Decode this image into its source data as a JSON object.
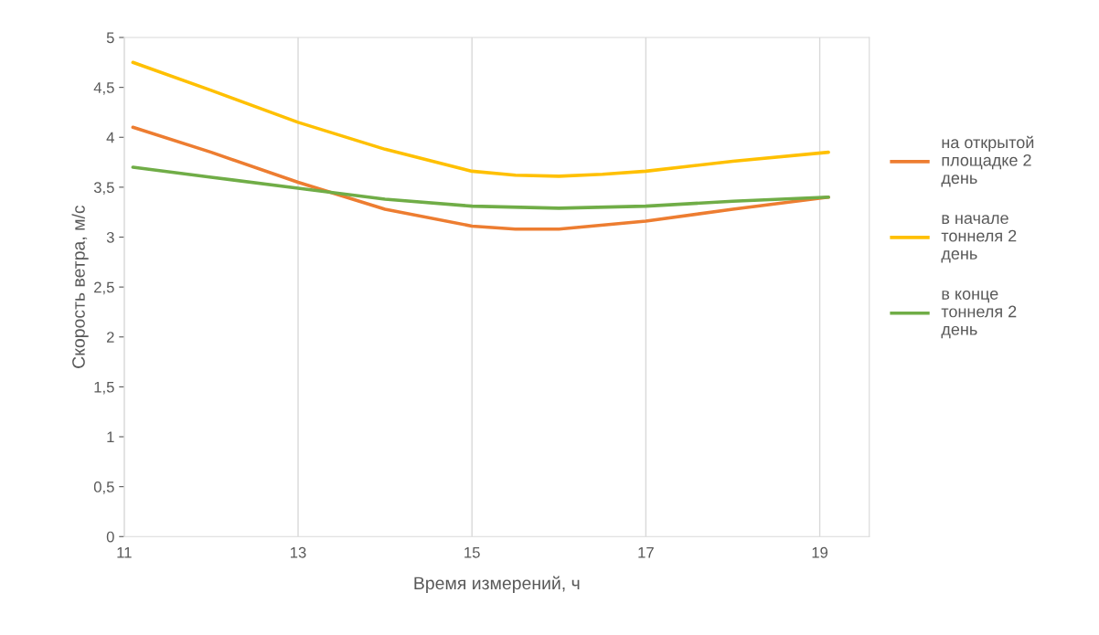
{
  "chart_data": {
    "type": "line",
    "xlabel": "Время измерений, ч",
    "ylabel": "Скорость ветра, м/с",
    "xlim": [
      11,
      19.57
    ],
    "xticks": [
      11,
      13,
      15,
      17,
      19
    ],
    "ylim": [
      0,
      5
    ],
    "yticks": [
      0,
      {
        "value": 0.5,
        "label": "0,5"
      },
      1,
      {
        "value": 1.5,
        "label": "1,5"
      },
      2,
      {
        "value": 2.5,
        "label": "2,5"
      },
      3,
      {
        "value": 3.5,
        "label": "3,5"
      },
      4,
      {
        "value": 4.5,
        "label": "4,5"
      },
      5
    ],
    "grid": "x",
    "legend": "right",
    "line_style": "solid",
    "marker": "none",
    "series": [
      {
        "name": "на открытой площадке 2 день",
        "color": "#ed7d31",
        "x": [
          11.1,
          12,
          13,
          14,
          15,
          15.5,
          16,
          17,
          18,
          19.1
        ],
        "values": [
          4.1,
          3.85,
          3.55,
          3.28,
          3.11,
          3.08,
          3.08,
          3.16,
          3.28,
          3.4
        ]
      },
      {
        "name": "в начале тоннеля 2 день",
        "color": "#ffc000",
        "x": [
          11.1,
          12,
          13,
          14,
          15,
          15.5,
          16,
          16.5,
          17,
          18,
          19.1
        ],
        "values": [
          4.75,
          4.47,
          4.15,
          3.88,
          3.66,
          3.62,
          3.61,
          3.63,
          3.66,
          3.76,
          3.85
        ]
      },
      {
        "name": "в конце тоннеля 2 день",
        "color": "#70ad47",
        "x": [
          11.1,
          12,
          13,
          14,
          15,
          16,
          17,
          18,
          19.1
        ],
        "values": [
          3.7,
          3.6,
          3.49,
          3.38,
          3.31,
          3.29,
          3.31,
          3.36,
          3.4
        ]
      }
    ]
  }
}
